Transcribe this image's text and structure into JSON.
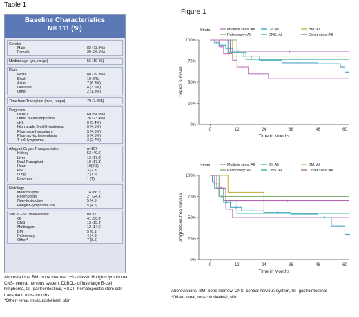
{
  "table": {
    "title": "Table 1",
    "header_line1": "Baseline Characteristics",
    "header_line2": "N= 111 (%)",
    "sections": [
      {
        "name": "Gender",
        "rows": [
          [
            "Male",
            "82 (73.9%)"
          ],
          [
            "Female",
            "29 (26.1%)"
          ]
        ]
      },
      {
        "name": "Median Age (yrs, range)",
        "value": "56 (19-85)",
        "rows": []
      },
      {
        "name": "Race",
        "rows": [
          [
            "White",
            "88 (79.3%)"
          ],
          [
            "Black",
            "10 (9%)"
          ],
          [
            "Asian",
            "7 (6.3%)"
          ],
          [
            "Declined",
            "4 (3.6%)"
          ],
          [
            "Other",
            "2 (1.8%)"
          ]
        ]
      },
      {
        "name": "Time from Transplant (mos, range)",
        "value": "79 (2-324)",
        "rows": []
      },
      {
        "name": "Diagnosis",
        "rows": [
          [
            "DLBCL",
            "60 (54.0%)"
          ],
          [
            "Other B-cell lymphoma",
            "26 (23.4%)"
          ],
          [
            "cHL",
            "6 (5.4%)"
          ],
          [
            "High grade B-cell lymphoma",
            "5 (4.5%)"
          ],
          [
            "Plasma cell neoplasm",
            "5 (4.5%)"
          ],
          [
            "Plasmacytic hyperplasia",
            "5 (4.5%)"
          ],
          [
            "T-cell lymphoma",
            "3 (2.7%)"
          ]
        ]
      },
      {
        "name": "Allograft Organ Transplantation",
        "value": "n=107",
        "rows": [
          [
            "Kidney",
            "53 (49.5)"
          ],
          [
            "Liver",
            "19 (17.8)"
          ],
          [
            "Dual Transplant",
            "19 (17.8)"
          ],
          [
            "Heart",
            "10(9.3)"
          ],
          [
            "HSCT",
            "3 (2.8)"
          ],
          [
            "Lung",
            "2 (1.9)"
          ],
          [
            "Pancreas",
            "1 (1)"
          ]
        ]
      },
      {
        "name": "Histology",
        "rows": [
          [
            "Monomorphic",
            "74 (66.7)"
          ],
          [
            "Polymorphic",
            "27 (24.3)"
          ],
          [
            "Non-destructive",
            "5 (4.5)"
          ],
          [
            "Hodgkin-lymphoma like",
            "5 (4.5)"
          ]
        ]
      },
      {
        "name": "Site of END Involvement",
        "value": "n= 82",
        "rows": [
          [
            "GI",
            "41 (50.0)"
          ],
          [
            "CNS",
            "13 (15.9)"
          ],
          [
            "Multiorgan",
            "12 (14.6)"
          ],
          [
            "BM",
            "5 (6.1)"
          ],
          [
            "Pulmonary",
            "4 (4.9)"
          ],
          [
            "Other*",
            "7 (8.5)"
          ]
        ]
      }
    ],
    "abbreviations": "Abbreviations: BM- bone marrow, cHL- classic Hodgkin lymphoma, CNS- central nervous system, DLBCL- diffuse large B-cell lymphoma, GI- gastrointestinal, HSCT- hematopoietic stem cell transplant, mos- months",
    "footnote": "*Other- renal, musculoskeletal, skin"
  },
  "figure": {
    "title": "Figure 1",
    "abbreviations": "Abbreviations: BM- bone marrow, CNS- central nervous system, GI- gastrointestinal",
    "footnote": "*Other- renal, musculoskeletal, skin"
  },
  "colors": {
    "header": "#5b78b6",
    "multiple": "#c77cc4",
    "bm": "#c9b44a",
    "cns": "#3bb5a0",
    "gi": "#4aa6c2",
    "pulmonary": "#7fb36e",
    "other": "#b06bb0"
  },
  "chart_data": [
    {
      "type": "line",
      "title": "",
      "xlabel": "Time in Months",
      "ylabel": "Overall survival",
      "legend_title": "Strata",
      "legend_position": "top",
      "xlim": [
        -5,
        62
      ],
      "ylim": [
        0,
        100
      ],
      "xticks": [
        0,
        12,
        24,
        36,
        48,
        60
      ],
      "yticks": [
        0,
        25,
        50,
        75,
        100
      ],
      "ytick_labels": [
        "0%",
        "25%",
        "50%",
        "75%",
        "100%"
      ],
      "series": [
        {
          "name": "Multiple sites::All",
          "color": "#c77cc4",
          "x": [
            0,
            4,
            6,
            10,
            12,
            17,
            26,
            62
          ],
          "y": [
            100,
            92,
            84,
            76,
            68,
            60,
            54,
            54
          ]
        },
        {
          "name": "BM::All",
          "color": "#c9b44a",
          "x": [
            0,
            10,
            62
          ],
          "y": [
            100,
            80,
            80
          ]
        },
        {
          "name": "CNS::All",
          "color": "#3bb5a0",
          "x": [
            0,
            8,
            16,
            62
          ],
          "y": [
            100,
            85,
            77,
            77
          ]
        },
        {
          "name": "GI::All",
          "color": "#4aa6c2",
          "x": [
            0,
            2,
            4,
            7,
            10,
            15,
            22,
            32,
            48,
            58,
            60,
            62
          ],
          "y": [
            100,
            97,
            94,
            90,
            86,
            80,
            76,
            73,
            72,
            68,
            62,
            62
          ]
        },
        {
          "name": "Pulmonary::All",
          "color": "#7fb36e",
          "x": [
            0,
            12,
            62
          ],
          "y": [
            100,
            75,
            75
          ]
        },
        {
          "name": "Other sites::All",
          "color": "#b06bb0",
          "x": [
            0,
            9,
            62
          ],
          "y": [
            100,
            86,
            86
          ]
        }
      ]
    },
    {
      "type": "line",
      "title": "",
      "xlabel": "Time in Months",
      "ylabel": "Progression-free survival",
      "legend_title": "Strata",
      "legend_position": "top",
      "xlim": [
        -5,
        62
      ],
      "ylim": [
        0,
        100
      ],
      "xticks": [
        0,
        12,
        24,
        36,
        48,
        60
      ],
      "yticks": [
        0,
        25,
        50,
        75,
        100
      ],
      "ytick_labels": [
        "0%",
        "25%",
        "50%",
        "75%",
        "100%"
      ],
      "series": [
        {
          "name": "Multiple sites::All",
          "color": "#c77cc4",
          "x": [
            0,
            2,
            4,
            7,
            10,
            62
          ],
          "y": [
            100,
            90,
            75,
            60,
            50,
            50
          ]
        },
        {
          "name": "BM::All",
          "color": "#c9b44a",
          "x": [
            0,
            8,
            24,
            62
          ],
          "y": [
            100,
            80,
            55,
            55
          ]
        },
        {
          "name": "CNS::All",
          "color": "#3bb5a0",
          "x": [
            0,
            3,
            6,
            12,
            62
          ],
          "y": [
            100,
            85,
            70,
            55,
            55
          ]
        },
        {
          "name": "GI::All",
          "color": "#4aa6c2",
          "x": [
            0,
            1,
            2,
            4,
            6,
            9,
            14,
            24,
            36,
            48,
            54,
            60,
            62
          ],
          "y": [
            100,
            92,
            85,
            75,
            68,
            62,
            58,
            56,
            54,
            50,
            40,
            30,
            28
          ]
        },
        {
          "name": "Pulmonary::All",
          "color": "#7fb36e",
          "x": [
            0,
            4,
            62
          ],
          "y": [
            100,
            75,
            75
          ]
        },
        {
          "name": "Other sites::All",
          "color": "#b06bb0",
          "x": [
            0,
            3,
            7,
            62
          ],
          "y": [
            100,
            85,
            70,
            70
          ]
        }
      ]
    }
  ]
}
